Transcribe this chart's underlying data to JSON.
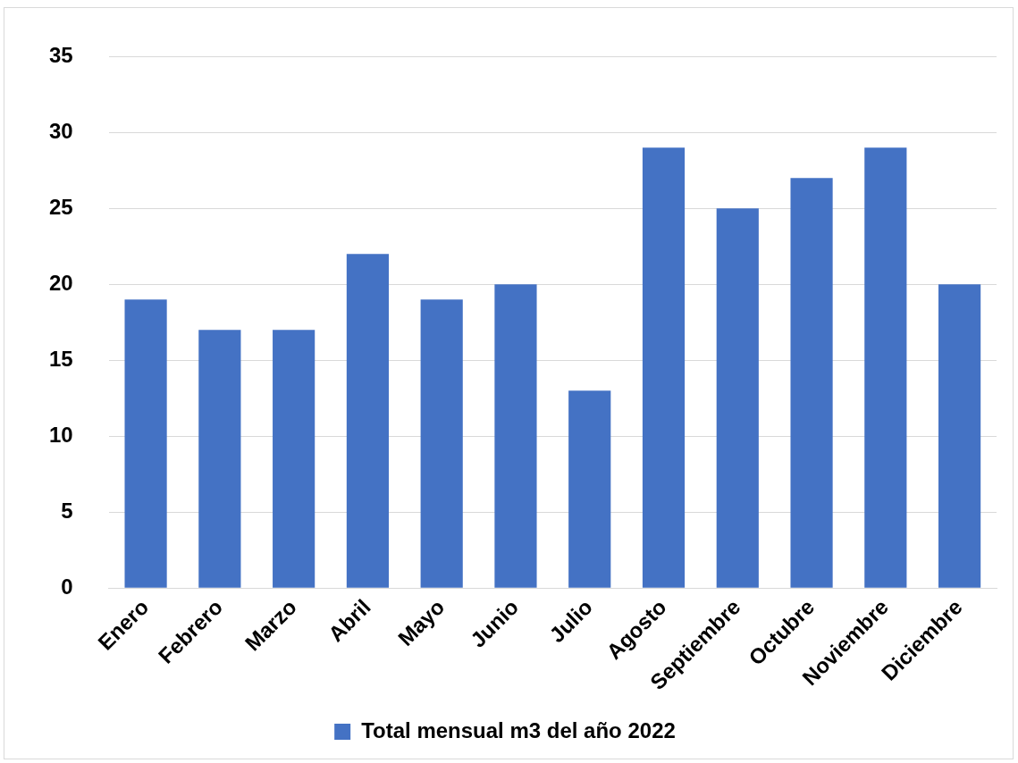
{
  "chart_data": {
    "type": "bar",
    "categories": [
      "Enero",
      "Febrero",
      "Marzo",
      "Abril",
      "Mayo",
      "Junio",
      "Julio",
      "Agosto",
      "Septiembre",
      "Octubre",
      "Noviembre",
      "Diciembre"
    ],
    "series": [
      {
        "name": "Total mensual m3 del año 2022",
        "color": "#4472c4",
        "values": [
          19,
          17,
          17,
          22,
          19,
          20,
          13,
          29,
          25,
          27,
          29,
          20
        ]
      }
    ],
    "ylim": [
      0,
      35
    ],
    "yticks": [
      0,
      5,
      10,
      15,
      20,
      25,
      30,
      35
    ],
    "grid": "y",
    "legend": "bottom"
  }
}
